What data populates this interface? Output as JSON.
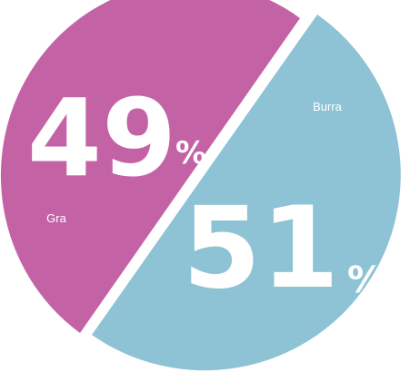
{
  "chart_data": {
    "type": "pie",
    "slices": [
      {
        "label": "Gra",
        "value": 49,
        "color": "#c462a6"
      },
      {
        "label": "Burra",
        "value": 51,
        "color": "#8ec3d6"
      }
    ],
    "value_suffix": "%"
  }
}
